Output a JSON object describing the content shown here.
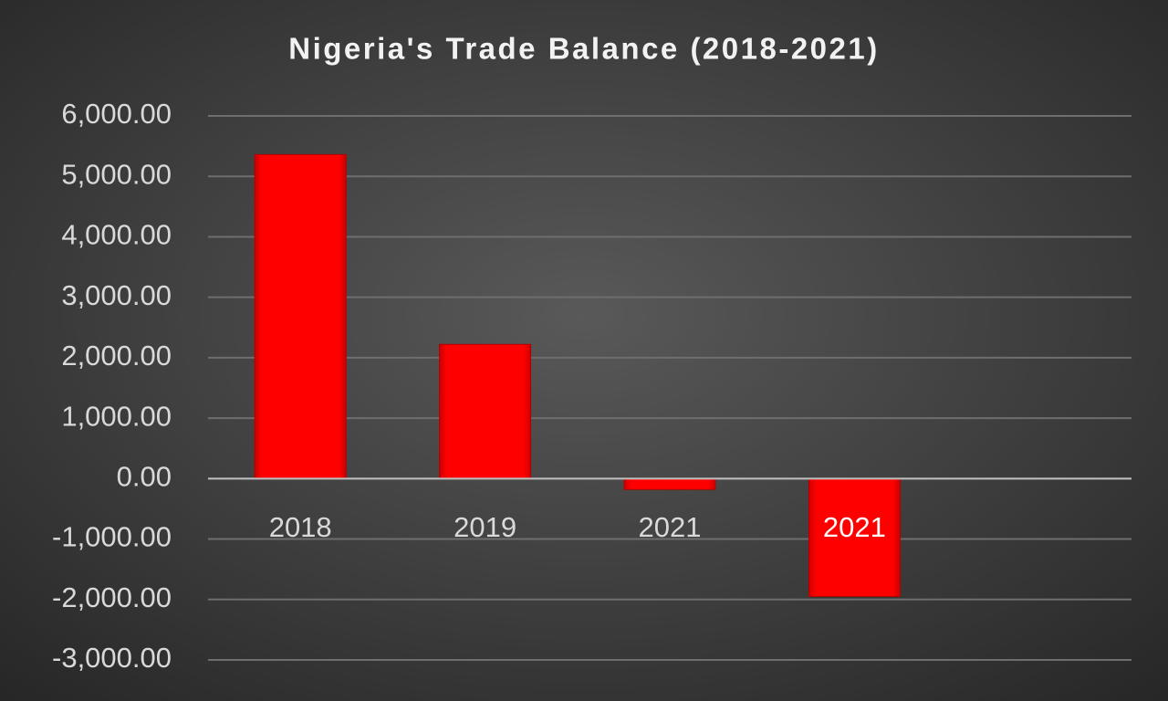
{
  "chart_data": {
    "type": "bar",
    "title": "Nigeria's Trade Balance (2018-2021)",
    "categories": [
      "2018",
      "2019",
      "2021",
      "2021",
      null
    ],
    "values": [
      5360,
      2220,
      -180,
      -1950,
      null
    ],
    "color": "#ff0000",
    "ylim": [
      -3000,
      6000
    ],
    "yticks": [
      {
        "value": 6000,
        "label": "6,000.00"
      },
      {
        "value": 5000,
        "label": "5,000.00"
      },
      {
        "value": 4000,
        "label": "4,000.00"
      },
      {
        "value": 3000,
        "label": "3,000.00"
      },
      {
        "value": 2000,
        "label": "2,000.00"
      },
      {
        "value": 1000,
        "label": "1,000.00"
      },
      {
        "value": 0,
        "label": "0.00"
      },
      {
        "value": -1000,
        "label": "-1,000.00"
      },
      {
        "value": -2000,
        "label": "-2,000.00"
      },
      {
        "value": -3000,
        "label": "-3,000.00"
      }
    ],
    "grid": true
  }
}
